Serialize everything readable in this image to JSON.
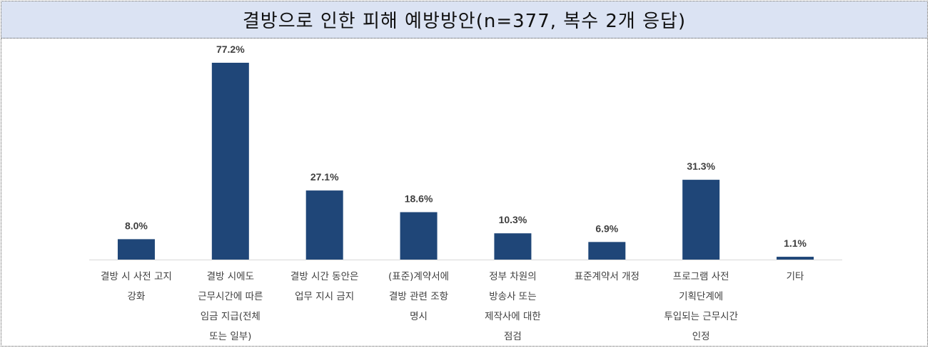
{
  "chart_data": {
    "type": "bar",
    "title": "결방으로 인한 피해 예방방안(n=377, 복수 2개 응답)",
    "categories": [
      [
        "결방 시 사전 고지",
        "강화"
      ],
      [
        "결방 시에도",
        "근무시간에 따른",
        "임금 지급(전체",
        "또는 일부)"
      ],
      [
        "결방 시간 동안은",
        "업무 지시 금지"
      ],
      [
        "(표준)계약서에",
        "결방 관련 조항",
        "명시"
      ],
      [
        "정부 차원의",
        "방송사 또는",
        "제작사에 대한",
        "점검"
      ],
      [
        "표준계약서 개정"
      ],
      [
        "프로그램 사전",
        "기획단계에",
        "투입되는 근무시간",
        "인정"
      ],
      [
        "기타"
      ]
    ],
    "values": [
      8.0,
      77.2,
      27.1,
      18.6,
      10.3,
      6.9,
      31.3,
      1.1
    ],
    "value_labels": [
      "8.0%",
      "77.2%",
      "27.1%",
      "18.6%",
      "10.3%",
      "6.9%",
      "31.3%",
      "1.1%"
    ],
    "ylim": [
      0,
      77.2
    ],
    "xlabel": "",
    "ylabel": "",
    "grid": false,
    "legend": "none",
    "bar_color": "#1f4678",
    "axis_color": "#d9d9d9"
  }
}
